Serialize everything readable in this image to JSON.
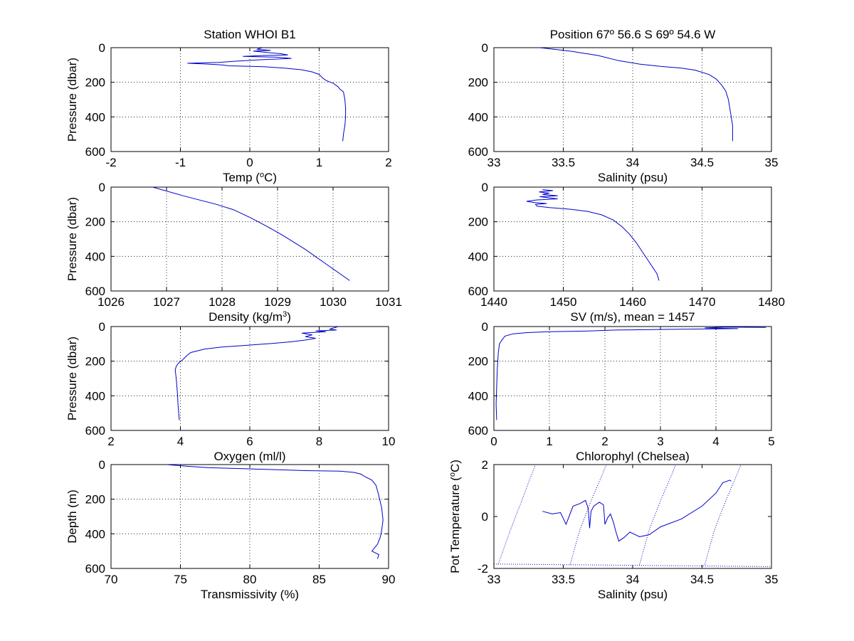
{
  "chart_data": [
    {
      "type": "line",
      "title": "Station  WHOI B1",
      "xlabel": "Temp (",
      "xlabel_sup": "o",
      "xlabel_tail": "C)",
      "ylabel": "Pressure (dbar)",
      "xlim": [
        -2,
        2
      ],
      "ylim": [
        0,
        600
      ],
      "y_reversed": true,
      "xticks": [
        -2,
        -1,
        0,
        1,
        2
      ],
      "yticks": [
        0,
        200,
        400,
        600
      ],
      "grid": true,
      "series": [
        {
          "color": "#0000cc",
          "points": [
            [
              0.18,
              0
            ],
            [
              0.1,
              10
            ],
            [
              0.3,
              15
            ],
            [
              0.05,
              20
            ],
            [
              0.25,
              28
            ],
            [
              0.45,
              35
            ],
            [
              0.55,
              42
            ],
            [
              0.2,
              45
            ],
            [
              -0.1,
              50
            ],
            [
              0.4,
              55
            ],
            [
              0.6,
              62
            ],
            [
              0.15,
              70
            ],
            [
              -0.2,
              78
            ],
            [
              -0.45,
              85
            ],
            [
              -0.9,
              90
            ],
            [
              -0.6,
              95
            ],
            [
              -0.4,
              100
            ],
            [
              -0.3,
              105
            ],
            [
              0.2,
              110
            ],
            [
              0.5,
              118
            ],
            [
              0.75,
              128
            ],
            [
              0.9,
              140
            ],
            [
              1.0,
              155
            ],
            [
              1.05,
              175
            ],
            [
              1.1,
              190
            ],
            [
              1.2,
              205
            ],
            [
              1.27,
              225
            ],
            [
              1.3,
              240
            ],
            [
              1.35,
              255
            ],
            [
              1.37,
              300
            ],
            [
              1.38,
              350
            ],
            [
              1.38,
              400
            ],
            [
              1.37,
              450
            ],
            [
              1.35,
              500
            ],
            [
              1.34,
              540
            ]
          ]
        }
      ]
    },
    {
      "type": "line",
      "title": "Position 67º 56.6 S 69º 54.6 W",
      "xlabel": "Salinity (psu)",
      "xlim": [
        33,
        35
      ],
      "ylim": [
        0,
        600
      ],
      "y_reversed": true,
      "xticks": [
        33,
        33.5,
        34,
        34.5,
        35
      ],
      "yticks": [
        0,
        200,
        400,
        600
      ],
      "grid": true,
      "series": [
        {
          "color": "#0000cc",
          "points": [
            [
              33.33,
              0
            ],
            [
              33.55,
              20
            ],
            [
              33.75,
              45
            ],
            [
              33.9,
              75
            ],
            [
              34.05,
              95
            ],
            [
              34.2,
              108
            ],
            [
              34.35,
              118
            ],
            [
              34.45,
              130
            ],
            [
              34.55,
              155
            ],
            [
              34.6,
              180
            ],
            [
              34.64,
              215
            ],
            [
              34.67,
              250
            ],
            [
              34.69,
              300
            ],
            [
              34.7,
              350
            ],
            [
              34.71,
              400
            ],
            [
              34.72,
              450
            ],
            [
              34.72,
              500
            ],
            [
              34.72,
              540
            ]
          ]
        }
      ]
    },
    {
      "type": "line",
      "xlabel": "Density (kg/m",
      "xlabel_sup": "3",
      "xlabel_tail": ")",
      "ylabel": "Pressure (dbar)",
      "xlim": [
        1026,
        1031
      ],
      "ylim": [
        0,
        600
      ],
      "y_reversed": true,
      "xticks": [
        1026,
        1027,
        1028,
        1029,
        1030,
        1031
      ],
      "yticks": [
        0,
        200,
        400,
        600
      ],
      "grid": true,
      "series": [
        {
          "color": "#0000cc",
          "points": [
            [
              1026.75,
              0
            ],
            [
              1027.3,
              50
            ],
            [
              1027.9,
              100
            ],
            [
              1028.2,
              130
            ],
            [
              1028.5,
              175
            ],
            [
              1028.8,
              225
            ],
            [
              1029.1,
              280
            ],
            [
              1029.5,
              360
            ],
            [
              1029.9,
              450
            ],
            [
              1030.3,
              540
            ]
          ]
        }
      ]
    },
    {
      "type": "line",
      "xlabel": "SV (m/s), mean = 1457",
      "xlim": [
        1440,
        1480
      ],
      "ylim": [
        0,
        600
      ],
      "y_reversed": true,
      "xticks": [
        1440,
        1450,
        1460,
        1470,
        1480
      ],
      "yticks": [
        0,
        200,
        400,
        600
      ],
      "grid": true,
      "series": [
        {
          "color": "#0000cc",
          "points": [
            [
              1447,
              15
            ],
            [
              1448.5,
              20
            ],
            [
              1446.5,
              28
            ],
            [
              1448,
              35
            ],
            [
              1447,
              42
            ],
            [
              1449.2,
              50
            ],
            [
              1446.6,
              55
            ],
            [
              1448,
              62
            ],
            [
              1449.2,
              68
            ],
            [
              1446.2,
              74
            ],
            [
              1444.7,
              82
            ],
            [
              1446,
              90
            ],
            [
              1447.6,
              95
            ],
            [
              1446,
              100
            ],
            [
              1446.2,
              110
            ],
            [
              1448,
              118
            ],
            [
              1451,
              128
            ],
            [
              1453.5,
              140
            ],
            [
              1455.5,
              160
            ],
            [
              1457.2,
              190
            ],
            [
              1458.5,
              230
            ],
            [
              1459.5,
              270
            ],
            [
              1460.5,
              320
            ],
            [
              1461.5,
              380
            ],
            [
              1462.5,
              440
            ],
            [
              1463.5,
              500
            ],
            [
              1463.8,
              540
            ]
          ]
        }
      ]
    },
    {
      "type": "line",
      "xlabel": "Oxygen (ml/l)",
      "ylabel": "Pressure (dbar)",
      "xlim": [
        2,
        10
      ],
      "ylim": [
        0,
        600
      ],
      "y_reversed": true,
      "xticks": [
        2,
        4,
        6,
        8,
        10
      ],
      "yticks": [
        0,
        200,
        400,
        600
      ],
      "grid": true,
      "series": [
        {
          "color": "#0000cc",
          "points": [
            [
              8.55,
              0
            ],
            [
              8.3,
              15
            ],
            [
              8.5,
              20
            ],
            [
              7.9,
              25
            ],
            [
              8.2,
              30
            ],
            [
              7.5,
              38
            ],
            [
              7.8,
              48
            ],
            [
              7.6,
              58
            ],
            [
              7.9,
              68
            ],
            [
              7.6,
              78
            ],
            [
              7.2,
              88
            ],
            [
              6.5,
              100
            ],
            [
              5.8,
              110
            ],
            [
              5.2,
              118
            ],
            [
              4.7,
              130
            ],
            [
              4.3,
              150
            ],
            [
              4.2,
              165
            ],
            [
              4.15,
              175
            ],
            [
              4.05,
              195
            ],
            [
              3.95,
              210
            ],
            [
              3.88,
              230
            ],
            [
              3.85,
              250
            ],
            [
              3.88,
              300
            ],
            [
              3.9,
              350
            ],
            [
              3.92,
              400
            ],
            [
              3.93,
              450
            ],
            [
              3.95,
              500
            ],
            [
              3.97,
              540
            ]
          ]
        }
      ]
    },
    {
      "type": "line",
      "xlabel": "Chlorophyl (Chelsea)",
      "xlim": [
        0,
        5
      ],
      "ylim": [
        0,
        600
      ],
      "y_reversed": true,
      "xticks": [
        0,
        1,
        2,
        3,
        4,
        5
      ],
      "yticks": [
        0,
        200,
        400,
        600
      ],
      "grid": true,
      "series": [
        {
          "color": "#0000cc",
          "points": [
            [
              4.9,
              5
            ],
            [
              4.2,
              3
            ],
            [
              3.8,
              8
            ],
            [
              4.4,
              12
            ],
            [
              3.2,
              16
            ],
            [
              2.2,
              20
            ],
            [
              1.7,
              26
            ],
            [
              1.0,
              30
            ],
            [
              0.6,
              35
            ],
            [
              0.35,
              42
            ],
            [
              0.2,
              55
            ],
            [
              0.15,
              75
            ],
            [
              0.1,
              100
            ],
            [
              0.08,
              150
            ],
            [
              0.06,
              250
            ],
            [
              0.05,
              350
            ],
            [
              0.04,
              450
            ],
            [
              0.05,
              540
            ]
          ]
        }
      ]
    },
    {
      "type": "line",
      "xlabel": "Transmissivity (%)",
      "ylabel": "Depth (m)",
      "xlim": [
        70,
        90
      ],
      "ylim": [
        0,
        600
      ],
      "y_reversed": true,
      "xticks": [
        70,
        75,
        80,
        85,
        90
      ],
      "yticks": [
        0,
        200,
        400,
        600
      ],
      "grid": true,
      "series": [
        {
          "color": "#0000cc",
          "points": [
            [
              74,
              0
            ],
            [
              75.5,
              10
            ],
            [
              77,
              18
            ],
            [
              79.5,
              24
            ],
            [
              82,
              30
            ],
            [
              84,
              35
            ],
            [
              86.5,
              38
            ],
            [
              87.5,
              45
            ],
            [
              88,
              55
            ],
            [
              88.3,
              70
            ],
            [
              88.8,
              90
            ],
            [
              89.1,
              120
            ],
            [
              89.3,
              180
            ],
            [
              89.5,
              250
            ],
            [
              89.6,
              320
            ],
            [
              89.5,
              380
            ],
            [
              89.4,
              420
            ],
            [
              89.2,
              460
            ],
            [
              89.0,
              480
            ],
            [
              88.8,
              500
            ],
            [
              89.3,
              520
            ],
            [
              89.2,
              545
            ]
          ]
        }
      ]
    },
    {
      "type": "line",
      "xlabel": "Salinity (psu)",
      "ylabel": "Pot Temperature (",
      "ylabel_sup": "o",
      "ylabel_tail": "C)",
      "xlim": [
        33,
        35
      ],
      "ylim": [
        -2,
        2
      ],
      "y_reversed": false,
      "xticks": [
        33,
        33.5,
        34,
        34.5,
        35
      ],
      "yticks": [
        -2,
        0,
        2
      ],
      "grid": false,
      "isopycnals": [
        [
          [
            33.03,
            -1.85
          ],
          [
            33.12,
            -0.5
          ],
          [
            33.2,
            0.6
          ],
          [
            33.27,
            1.6
          ],
          [
            33.3,
            2.0
          ]
        ],
        [
          [
            33.55,
            -1.85
          ],
          [
            33.62,
            -0.5
          ],
          [
            33.7,
            0.6
          ],
          [
            33.78,
            1.6
          ],
          [
            33.81,
            2.0
          ]
        ],
        [
          [
            34.05,
            -1.85
          ],
          [
            34.12,
            -0.5
          ],
          [
            34.2,
            0.6
          ],
          [
            34.28,
            1.6
          ],
          [
            34.31,
            2.0
          ]
        ],
        [
          [
            34.52,
            -1.85
          ],
          [
            34.59,
            -0.5
          ],
          [
            34.67,
            0.6
          ],
          [
            34.75,
            1.6
          ],
          [
            34.78,
            2.0
          ]
        ],
        [
          [
            33.0,
            -1.83
          ],
          [
            35.0,
            -1.93
          ]
        ]
      ],
      "series": [
        {
          "color": "#0000cc",
          "points": [
            [
              33.35,
              0.2
            ],
            [
              33.42,
              0.1
            ],
            [
              33.48,
              0.15
            ],
            [
              33.52,
              -0.3
            ],
            [
              33.57,
              0.4
            ],
            [
              33.62,
              0.5
            ],
            [
              33.66,
              0.62
            ],
            [
              33.68,
              0.3
            ],
            [
              33.69,
              -0.45
            ],
            [
              33.7,
              0.2
            ],
            [
              33.72,
              0.4
            ],
            [
              33.76,
              0.55
            ],
            [
              33.79,
              0.45
            ],
            [
              33.8,
              -0.3
            ],
            [
              33.82,
              -0.05
            ],
            [
              33.84,
              0.1
            ],
            [
              33.86,
              -0.2
            ],
            [
              33.88,
              -0.6
            ],
            [
              33.9,
              -0.95
            ],
            [
              33.94,
              -0.8
            ],
            [
              33.98,
              -0.6
            ],
            [
              34.05,
              -0.78
            ],
            [
              34.12,
              -0.7
            ],
            [
              34.2,
              -0.4
            ],
            [
              34.35,
              -0.1
            ],
            [
              34.5,
              0.4
            ],
            [
              34.6,
              0.9
            ],
            [
              34.65,
              1.3
            ],
            [
              34.7,
              1.4
            ],
            [
              34.71,
              1.36
            ]
          ]
        }
      ]
    }
  ]
}
